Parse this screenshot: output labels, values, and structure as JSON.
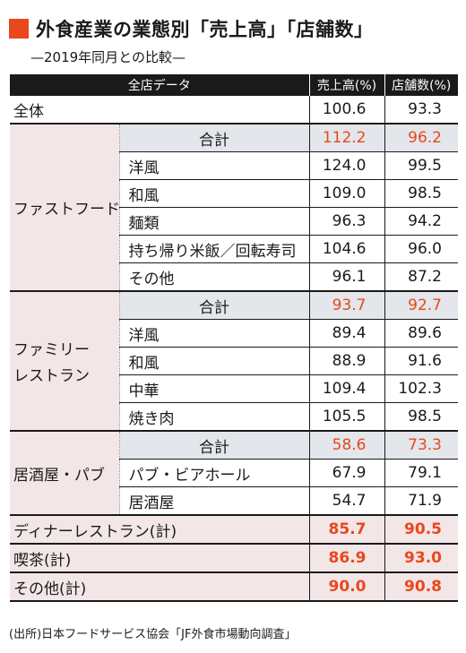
{
  "title": "外食産業の業態別「売上高」「店舗数」",
  "subtitle": "—2019年同月との比較—",
  "accent_color": "#e8481c",
  "table": {
    "headers": [
      "全店データ",
      "売上高(%)",
      "店舗数(%)"
    ],
    "overall": {
      "label": "全体",
      "sales": "100.6",
      "stores": "93.3"
    },
    "groups": [
      {
        "label": "ファストフード",
        "label_line2": "",
        "rows": [
          {
            "label": "合計",
            "sales": "112.2",
            "stores": "96.2",
            "total": true
          },
          {
            "label": "洋風",
            "sales": "124.0",
            "stores": "99.5"
          },
          {
            "label": "和風",
            "sales": "109.0",
            "stores": "98.5"
          },
          {
            "label": "麺類",
            "sales": "96.3",
            "stores": "94.2"
          },
          {
            "label": "持ち帰り米飯／回転寿司",
            "sales": "104.6",
            "stores": "96.0"
          },
          {
            "label": "その他",
            "sales": "96.1",
            "stores": "87.2"
          }
        ]
      },
      {
        "label": "ファミリー",
        "label_line2": "レストラン",
        "rows": [
          {
            "label": "合計",
            "sales": "93.7",
            "stores": "92.7",
            "total": true
          },
          {
            "label": "洋風",
            "sales": "89.4",
            "stores": "89.6"
          },
          {
            "label": "和風",
            "sales": "88.9",
            "stores": "91.6"
          },
          {
            "label": "中華",
            "sales": "109.4",
            "stores": "102.3"
          },
          {
            "label": "焼き肉",
            "sales": "105.5",
            "stores": "98.5"
          }
        ]
      },
      {
        "label": "居酒屋・パブ",
        "label_line2": "",
        "rows": [
          {
            "label": "合計",
            "sales": "58.6",
            "stores": "73.3",
            "total": true
          },
          {
            "label": "パブ・ビアホール",
            "sales": "67.9",
            "stores": "79.1"
          },
          {
            "label": "居酒屋",
            "sales": "54.7",
            "stores": "71.9"
          }
        ]
      }
    ],
    "totals": [
      {
        "label": "ディナーレストラン(計)",
        "sales": "85.7",
        "stores": "90.5"
      },
      {
        "label": "喫茶(計)",
        "sales": "86.9",
        "stores": "93.0"
      },
      {
        "label": "その他(計)",
        "sales": "90.0",
        "stores": "90.8"
      }
    ]
  },
  "source": "(出所)日本フードサービス協会「JF外食市場動向調査」"
}
